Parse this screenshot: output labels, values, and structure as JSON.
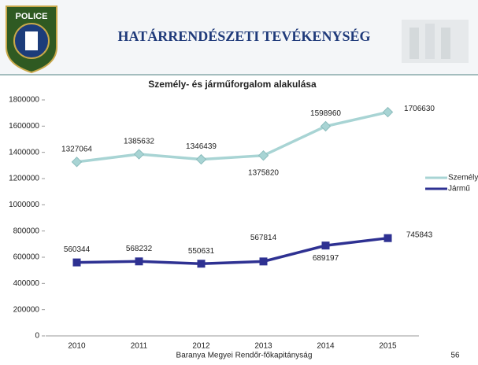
{
  "header": {
    "title": "HATÁRRENDÉSZETI TEVÉKENYSÉG",
    "logo_text": "POLICE"
  },
  "footer": {
    "text": "Baranya Megyei Rendőr-főkapitányság",
    "page": "56"
  },
  "chart_data": {
    "type": "line",
    "title": "Személy- és járműforgalom alakulása",
    "categories": [
      "2010",
      "2011",
      "2012",
      "2013",
      "2014",
      "2015"
    ],
    "series": [
      {
        "name": "Személy",
        "color": "#a8d4d4",
        "values": [
          1327064,
          1385632,
          1346439,
          1375820,
          1598960,
          1706630
        ]
      },
      {
        "name": "Jármű",
        "color": "#2e3192",
        "values": [
          560344,
          568232,
          550631,
          567814,
          689197,
          745843
        ]
      }
    ],
    "ylim": [
      0,
      1800000
    ],
    "yticks": [
      0,
      200000,
      400000,
      600000,
      800000,
      1000000,
      1200000,
      1400000,
      1600000,
      1800000
    ],
    "grid": false,
    "legend": "right"
  }
}
